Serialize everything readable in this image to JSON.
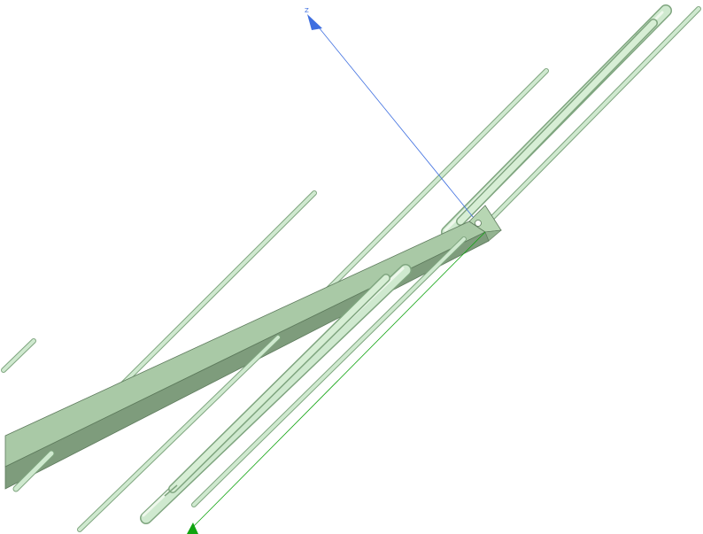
{
  "viewport": {
    "background": "#ffffff"
  },
  "model": {
    "rod_color": "#cfe9cf",
    "rod_edge_color": "#7fa57f",
    "bar_top_color": "#a9c9a6",
    "bar_side_color": "#7e9c7c",
    "bar_edge_color": "#5d7a5c"
  },
  "axes": {
    "z_label": "Z",
    "z_color": "#3f6fe0",
    "y_color": "#11a411"
  }
}
